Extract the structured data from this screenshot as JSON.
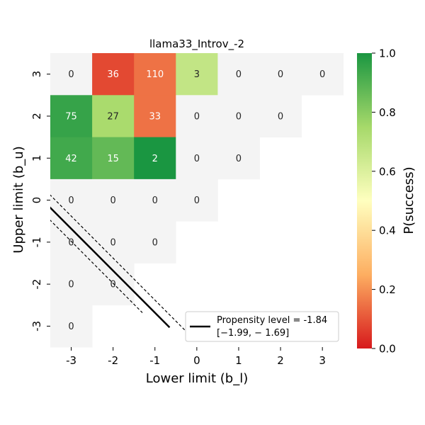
{
  "chart_data": {
    "type": "heatmap",
    "title": "llama33_Introv_-2",
    "xlabel": "Lower limit (b_l)",
    "ylabel": "Upper limit (b_u)",
    "x_categories": [
      "-3",
      "-2",
      "-1",
      "0",
      "1",
      "2",
      "3"
    ],
    "y_categories": [
      "3",
      "2",
      "1",
      "0",
      "-1",
      "-2",
      "-3"
    ],
    "cells": [
      {
        "xl": "-3",
        "yu": "3",
        "count": "0",
        "p": null
      },
      {
        "xl": "-2",
        "yu": "3",
        "count": "36",
        "p": 0.08
      },
      {
        "xl": "-1",
        "yu": "3",
        "count": "110",
        "p": 0.15
      },
      {
        "xl": "0",
        "yu": "3",
        "count": "3",
        "p": 0.67
      },
      {
        "xl": "1",
        "yu": "3",
        "count": "0",
        "p": null
      },
      {
        "xl": "2",
        "yu": "3",
        "count": "0",
        "p": null
      },
      {
        "xl": "3",
        "yu": "3",
        "count": "0",
        "p": null
      },
      {
        "xl": "-3",
        "yu": "2",
        "count": "75",
        "p": 0.95
      },
      {
        "xl": "-2",
        "yu": "2",
        "count": "27",
        "p": 0.74
      },
      {
        "xl": "-1",
        "yu": "2",
        "count": "33",
        "p": 0.15
      },
      {
        "xl": "0",
        "yu": "2",
        "count": "0",
        "p": null
      },
      {
        "xl": "1",
        "yu": "2",
        "count": "0",
        "p": null
      },
      {
        "xl": "2",
        "yu": "2",
        "count": "0",
        "p": null
      },
      {
        "xl": "-3",
        "yu": "1",
        "count": "42",
        "p": 0.93
      },
      {
        "xl": "-2",
        "yu": "1",
        "count": "15",
        "p": 0.87
      },
      {
        "xl": "-1",
        "yu": "1",
        "count": "2",
        "p": 1.0
      },
      {
        "xl": "0",
        "yu": "1",
        "count": "0",
        "p": null
      },
      {
        "xl": "1",
        "yu": "1",
        "count": "0",
        "p": null
      },
      {
        "xl": "-3",
        "yu": "0",
        "count": "0",
        "p": null
      },
      {
        "xl": "-2",
        "yu": "0",
        "count": "0",
        "p": null
      },
      {
        "xl": "-1",
        "yu": "0",
        "count": "0",
        "p": null
      },
      {
        "xl": "0",
        "yu": "0",
        "count": "0",
        "p": null
      },
      {
        "xl": "-3",
        "yu": "-1",
        "count": "0",
        "p": null
      },
      {
        "xl": "-2",
        "yu": "-1",
        "count": "0",
        "p": null
      },
      {
        "xl": "-1",
        "yu": "-1",
        "count": "0",
        "p": null
      },
      {
        "xl": "-3",
        "yu": "-2",
        "count": "0",
        "p": null
      },
      {
        "xl": "-2",
        "yu": "-2",
        "count": "0",
        "p": null
      },
      {
        "xl": "-3",
        "yu": "-3",
        "count": "0",
        "p": null
      }
    ],
    "propensity": {
      "level": -1.84,
      "ci": [
        -1.99,
        -1.69
      ],
      "legend_line1": "Propensity level = -1.84",
      "legend_line2": "[−1.99, − 1.69]"
    },
    "colorbar": {
      "label": "P(success)",
      "range": [
        0.0,
        1.0
      ],
      "ticks": [
        "0.0",
        "0.2",
        "0.4",
        "0.6",
        "0.8",
        "1.0"
      ],
      "tick_values": [
        0.0,
        0.2,
        0.4,
        0.6,
        0.8,
        1.0
      ]
    },
    "colors": {
      "empty_cell": "#f4f4f4",
      "scale": [
        "#d7191c",
        "#fdae61",
        "#ffffbf",
        "#a6d96a",
        "#1a9641"
      ]
    }
  }
}
